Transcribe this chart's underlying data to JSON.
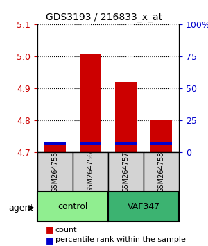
{
  "title": "GDS3193 / 216833_x_at",
  "samples": [
    "GSM264755",
    "GSM264756",
    "GSM264757",
    "GSM264758"
  ],
  "groups": [
    "control",
    "control",
    "VAF347",
    "VAF347"
  ],
  "group_labels": [
    "control",
    "VAF347"
  ],
  "group_colors": [
    "#90EE90",
    "#3CB371"
  ],
  "bar_bottom": 4.7,
  "count_values": [
    4.73,
    5.01,
    4.92,
    4.8
  ],
  "percentile_values": [
    4.725,
    4.725,
    4.725,
    4.725
  ],
  "ylim_left": [
    4.7,
    5.1
  ],
  "ylim_right": [
    0,
    100
  ],
  "yticks_left": [
    4.7,
    4.8,
    4.9,
    5.0,
    5.1
  ],
  "yticks_right": [
    0,
    25,
    50,
    75,
    100
  ],
  "ytick_labels_right": [
    "0",
    "25",
    "50",
    "75",
    "100%"
  ],
  "count_color": "#CC0000",
  "percentile_color": "#0000CC",
  "bar_width": 0.6,
  "agent_label": "agent",
  "xlabel": "",
  "left_tick_color": "#CC0000",
  "right_tick_color": "#0000CC"
}
